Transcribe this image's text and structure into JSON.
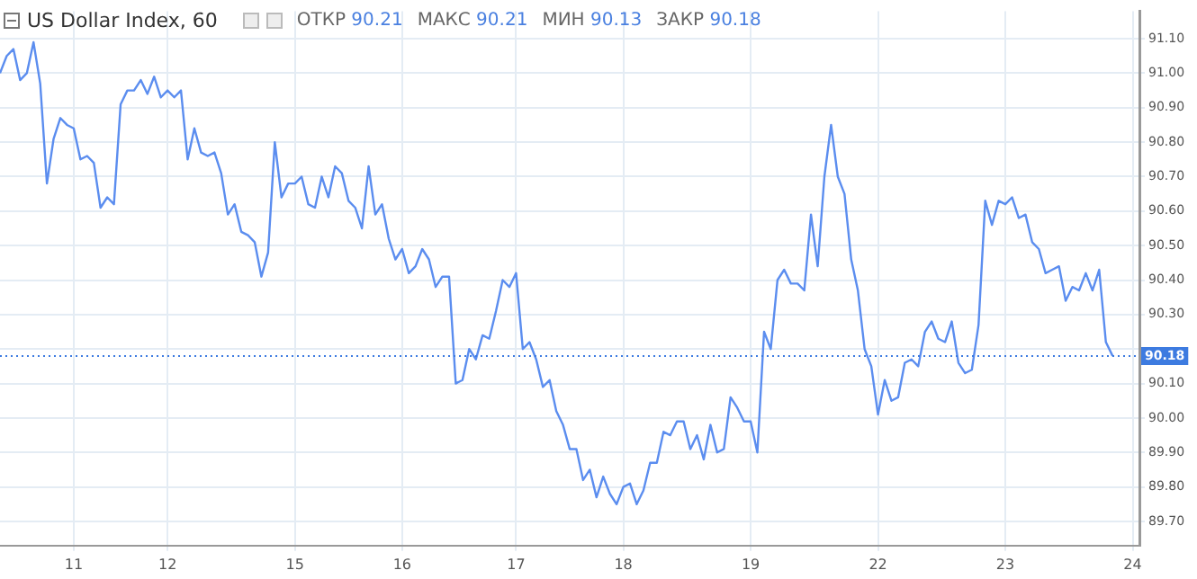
{
  "chart_data": {
    "type": "line",
    "title": "US Dollar Index, 60",
    "annotations": [
      "ОТКР 90.21",
      "МАКС 90.21",
      "МИН 90.13",
      "ЗАКР 90.18"
    ],
    "categories": [
      null,
      null,
      null,
      null,
      null,
      null,
      null,
      null,
      null,
      null,
      null,
      "11",
      null,
      null,
      null,
      null,
      null,
      null,
      null,
      null,
      null,
      null,
      null,
      null,
      null,
      "12",
      null,
      null,
      null,
      null,
      null,
      null,
      null,
      null,
      null,
      null,
      null,
      null,
      null,
      null,
      null,
      null,
      null,
      null,
      "15",
      null,
      null,
      null,
      null,
      null,
      null,
      null,
      null,
      null,
      null,
      null,
      null,
      null,
      null,
      null,
      "16",
      null,
      null,
      null,
      null,
      null,
      null,
      null,
      null,
      null,
      null,
      null,
      null,
      null,
      null,
      null,
      null,
      "17",
      null,
      null,
      null,
      null,
      null,
      null,
      null,
      null,
      null,
      null,
      null,
      null,
      null,
      null,
      null,
      "18",
      null,
      null,
      null,
      null,
      null,
      null,
      null,
      null,
      null,
      null,
      null,
      null,
      null,
      null,
      null,
      null,
      null,
      null,
      "19",
      null,
      null,
      null,
      null,
      null,
      null,
      null,
      null,
      null,
      null,
      null,
      null,
      null,
      null,
      null,
      null,
      null,
      null,
      "22",
      null,
      null,
      null,
      null,
      null,
      null,
      null,
      null,
      null,
      null,
      null,
      null,
      null,
      null,
      null,
      null,
      null,
      null,
      "23",
      null,
      null,
      null,
      null,
      null,
      null,
      null,
      null,
      null,
      null,
      null,
      null,
      null,
      null,
      null,
      null,
      null,
      null,
      "24",
      null
    ],
    "series": [
      {
        "color": "#5b8def",
        "values": [
          91.0,
          91.05,
          91.07,
          90.98,
          91.0,
          91.09,
          90.97,
          90.68,
          90.81,
          90.87,
          90.85,
          90.84,
          90.75,
          90.76,
          90.74,
          90.61,
          90.64,
          90.62,
          90.91,
          90.95,
          90.95,
          90.98,
          90.94,
          90.99,
          90.93,
          90.95,
          90.93,
          90.95,
          90.75,
          90.84,
          90.77,
          90.76,
          90.77,
          90.71,
          90.59,
          90.62,
          90.54,
          90.53,
          90.51,
          90.41,
          90.48,
          90.8,
          90.64,
          90.68,
          90.68,
          90.7,
          90.62,
          90.61,
          90.7,
          90.64,
          90.73,
          90.71,
          90.63,
          90.61,
          90.55,
          90.73,
          90.59,
          90.62,
          90.52,
          90.46,
          90.49,
          90.42,
          90.44,
          90.49,
          90.46,
          90.38,
          90.41,
          90.41,
          90.1,
          90.11,
          90.2,
          90.17,
          90.24,
          90.23,
          90.31,
          90.4,
          90.38,
          90.42,
          90.2,
          90.22,
          90.17,
          90.09,
          90.11,
          90.02,
          89.98,
          89.91,
          89.91,
          89.82,
          89.85,
          89.77,
          89.83,
          89.78,
          89.75,
          89.8,
          89.81,
          89.75,
          89.79,
          89.87,
          89.87,
          89.96,
          89.95,
          89.99,
          89.99,
          89.91,
          89.95,
          89.88,
          89.98,
          89.9,
          89.91,
          90.06,
          90.03,
          89.99,
          89.99,
          89.9,
          90.25,
          90.2,
          90.4,
          90.43,
          90.39,
          90.39,
          90.37,
          90.59,
          90.44,
          90.7,
          90.85,
          90.7,
          90.65,
          90.46,
          90.37,
          90.2,
          90.15,
          90.01,
          90.11,
          90.05,
          90.06,
          90.16,
          90.17,
          90.15,
          90.25,
          90.28,
          90.23,
          90.22,
          90.28,
          90.16,
          90.13,
          90.14,
          90.27,
          90.63,
          90.56,
          90.63,
          90.62,
          90.64,
          90.58,
          90.59,
          90.51,
          90.49,
          90.42,
          90.43,
          90.44,
          90.34,
          90.38,
          90.37,
          90.42,
          90.37,
          90.43,
          90.22,
          90.18,
          null,
          null,
          null,
          null
        ]
      }
    ],
    "ylim": [
      89.63,
      91.18
    ],
    "yticks": [
      {
        "value": 89.7,
        "label": "89.70"
      },
      {
        "value": 89.8,
        "label": "89.80"
      },
      {
        "value": 89.9,
        "label": "89.90"
      },
      {
        "value": 90.0,
        "label": "90.00"
      },
      {
        "value": 90.1,
        "label": "90.10"
      },
      {
        "value": 90.2,
        "label": null
      },
      {
        "value": 90.3,
        "label": "90.30"
      },
      {
        "value": 90.4,
        "label": "90.40"
      },
      {
        "value": 90.5,
        "label": "90.50"
      },
      {
        "value": 90.6,
        "label": "90.60"
      },
      {
        "value": 90.7,
        "label": "90.70"
      },
      {
        "value": 90.8,
        "label": "90.80"
      },
      {
        "value": 90.9,
        "label": "90.90"
      },
      {
        "value": 91.0,
        "label": "91.00"
      },
      {
        "value": 91.1,
        "label": "91.10"
      }
    ],
    "ref_lines": [
      {
        "axis": "y",
        "value": 90.18,
        "label": "90.18",
        "color": "#3d7be0",
        "line_style": "dotted"
      }
    ],
    "grid": true,
    "legend": false,
    "marker": "none",
    "line_style": "solid"
  }
}
